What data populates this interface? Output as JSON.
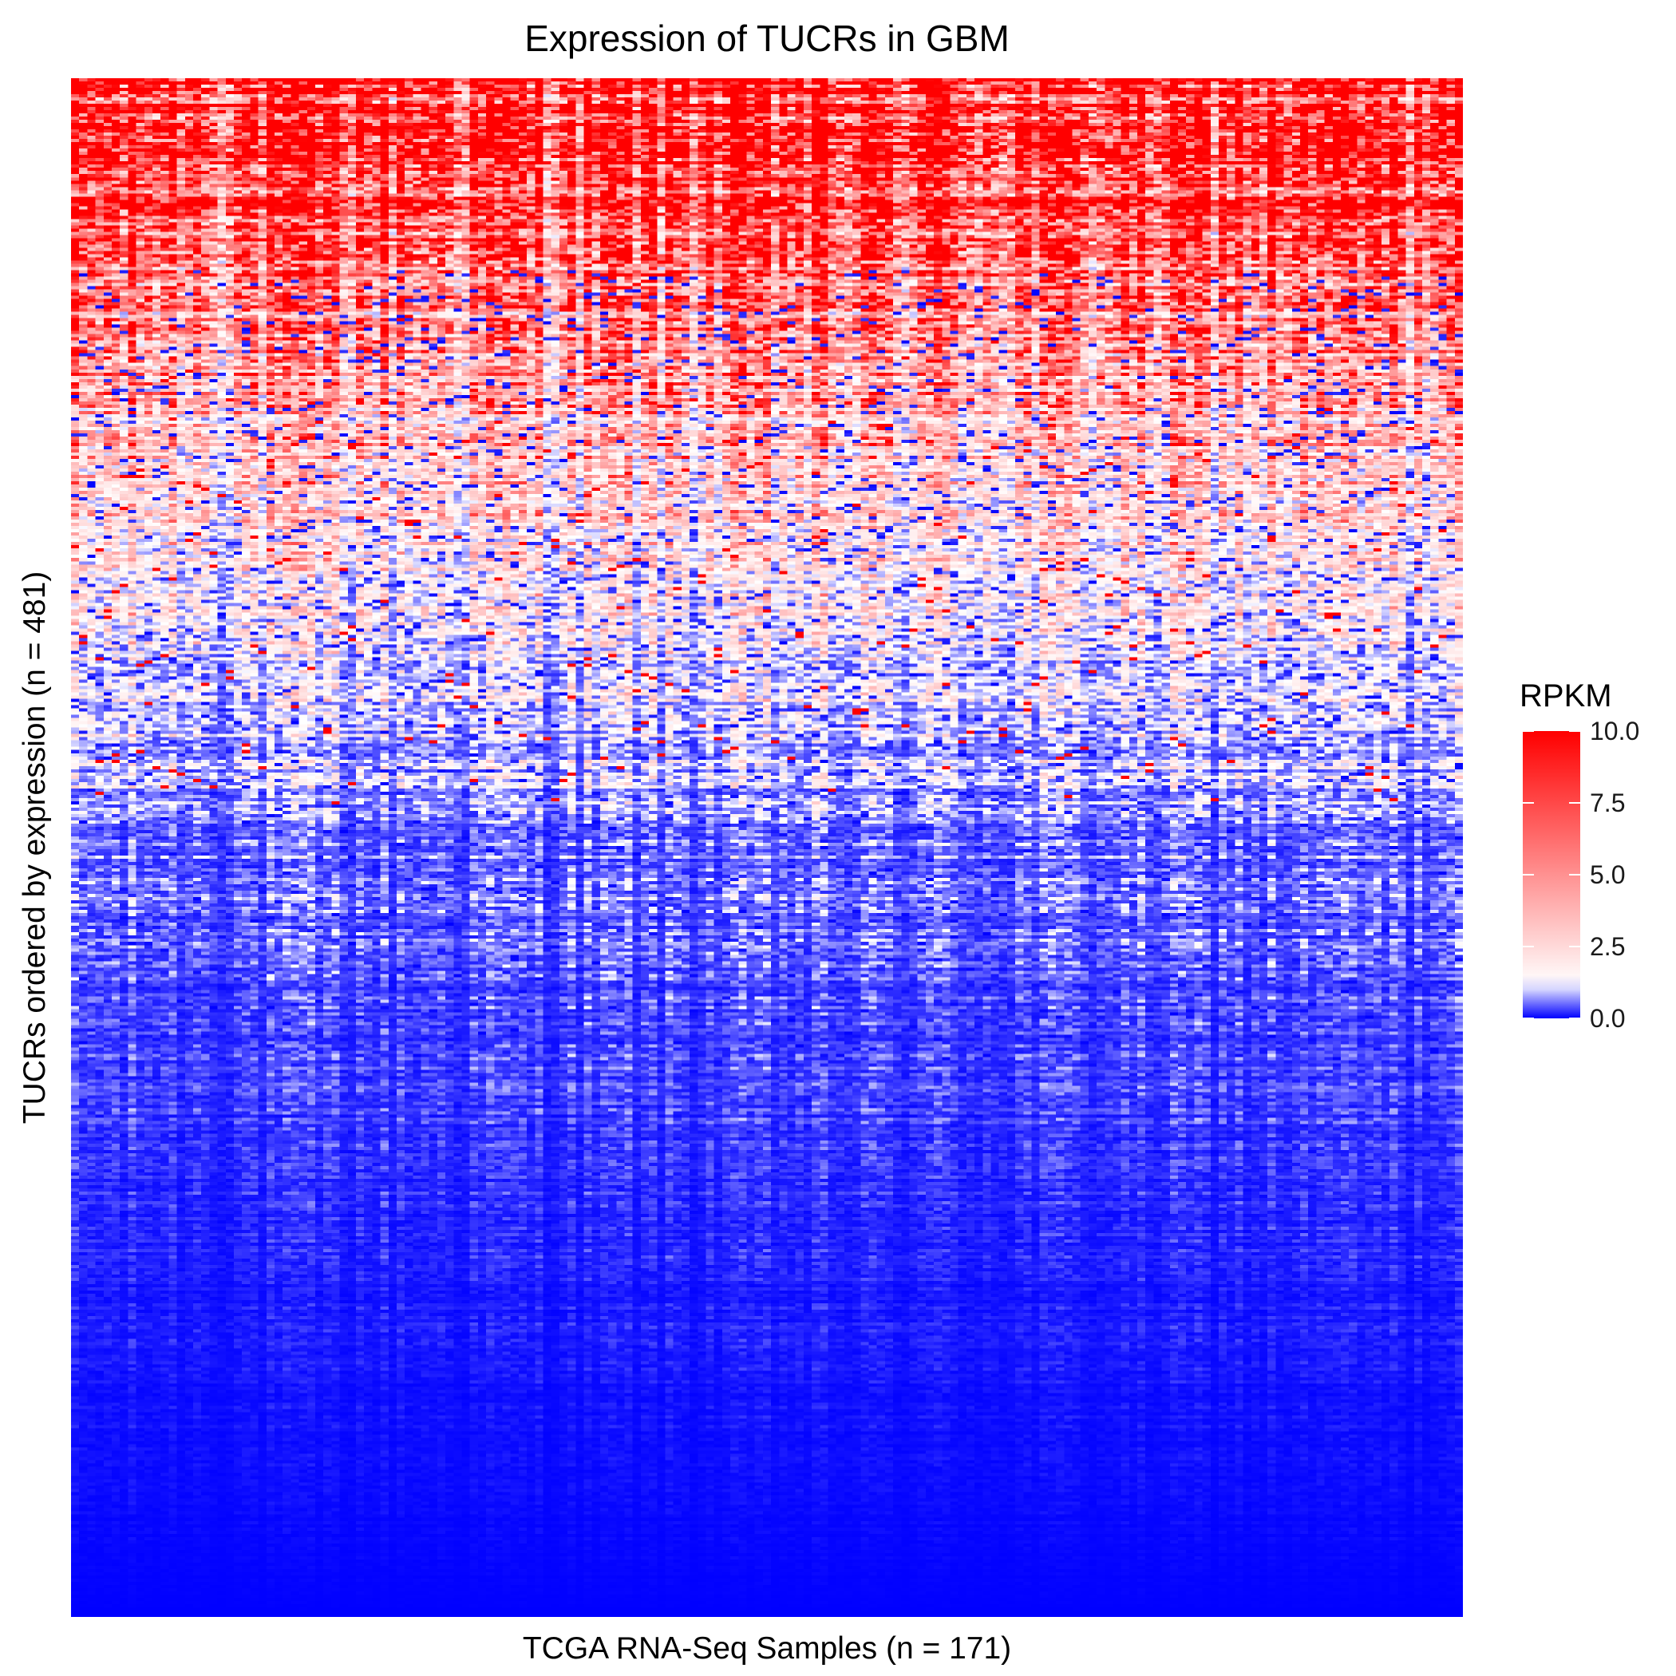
{
  "chart_data": {
    "type": "heatmap",
    "title": "Expression of TUCRs in GBM",
    "xlabel": "TCGA RNA-Seq Samples (n = 171)",
    "ylabel": "TUCRs ordered by expression (n = 481)",
    "n_rows": 481,
    "n_cols": 171,
    "row_order": "descending mean expression (top = highest)",
    "x_tick_labels": [],
    "y_tick_labels": [],
    "grid": false,
    "value_range": [
      0,
      10
    ],
    "value_clamped_above": 10,
    "legend": {
      "title": "RPKM",
      "position": "right",
      "ticks": [
        {
          "value": 0.0,
          "label": "0.0"
        },
        {
          "value": 2.5,
          "label": "2.5"
        },
        {
          "value": 5.0,
          "label": "5.0"
        },
        {
          "value": 7.5,
          "label": "7.5"
        },
        {
          "value": 10.0,
          "label": "10.0"
        }
      ]
    },
    "colorscale": [
      {
        "value": 0.0,
        "color": "#0000FF"
      },
      {
        "value": 1.2,
        "color": "#FFFFFF"
      },
      {
        "value": 10.0,
        "color": "#FF0000"
      }
    ],
    "approx_row_profile": [
      {
        "row_fraction": 0.0,
        "typical_rpkm": 10.0
      },
      {
        "row_fraction": 0.05,
        "typical_rpkm": 10.0
      },
      {
        "row_fraction": 0.1,
        "typical_rpkm": 8.5
      },
      {
        "row_fraction": 0.14,
        "typical_rpkm": 6.0
      },
      {
        "row_fraction": 0.2,
        "typical_rpkm": 4.0
      },
      {
        "row_fraction": 0.27,
        "typical_rpkm": 2.6
      },
      {
        "row_fraction": 0.33,
        "typical_rpkm": 1.8
      },
      {
        "row_fraction": 0.4,
        "typical_rpkm": 1.3
      },
      {
        "row_fraction": 0.45,
        "typical_rpkm": 0.95
      },
      {
        "row_fraction": 0.5,
        "typical_rpkm": 0.6
      },
      {
        "row_fraction": 0.6,
        "typical_rpkm": 0.35
      },
      {
        "row_fraction": 0.7,
        "typical_rpkm": 0.22
      },
      {
        "row_fraction": 0.8,
        "typical_rpkm": 0.12
      },
      {
        "row_fraction": 0.9,
        "typical_rpkm": 0.05
      },
      {
        "row_fraction": 1.0,
        "typical_rpkm": 0.0
      }
    ]
  }
}
